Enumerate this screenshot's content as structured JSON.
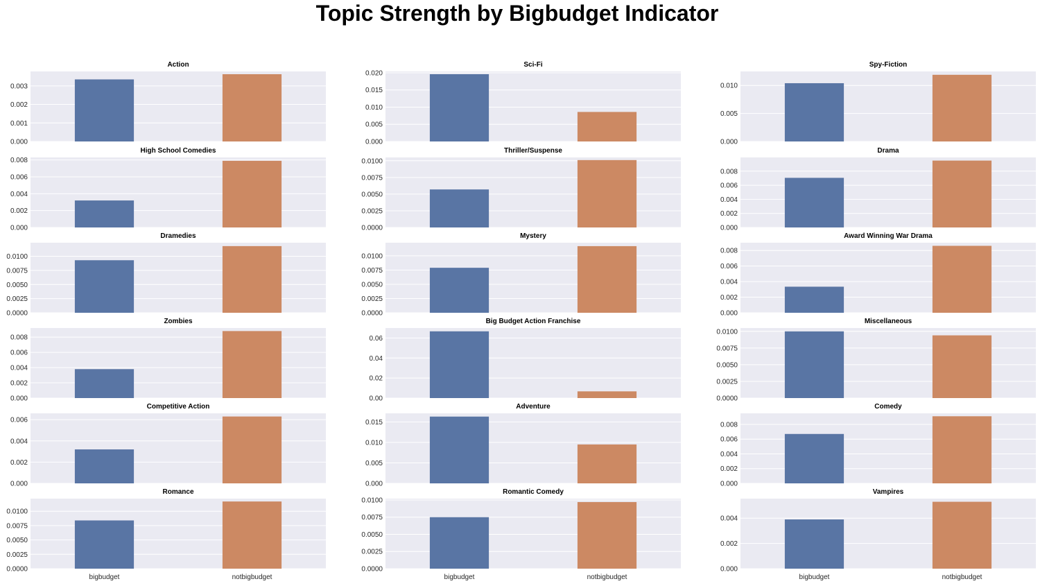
{
  "title": "Topic Strength by Bigbudget Indicator",
  "colors": {
    "bigbudget": "#5975a4",
    "notbigbudget": "#cc8963",
    "panel_bg": "#eaeaf2",
    "grid": "#ffffff"
  },
  "x_tick_labels": [
    "bigbudget",
    "notbigbudget"
  ],
  "chart_data": [
    {
      "type": "bar",
      "title": "Action",
      "categories": [
        "bigbudget",
        "notbigbudget"
      ],
      "values": [
        0.00335,
        0.00363
      ],
      "ylim": [
        0,
        0.00378
      ],
      "yticks": [
        "0.000",
        "0.001",
        "0.002",
        "0.003"
      ],
      "ytick_values": [
        0,
        0.001,
        0.002,
        0.003
      ]
    },
    {
      "type": "bar",
      "title": "Sci-Fi",
      "categories": [
        "bigbudget",
        "notbigbudget"
      ],
      "values": [
        0.0196,
        0.0086
      ],
      "ylim": [
        0,
        0.0204
      ],
      "yticks": [
        "0.000",
        "0.005",
        "0.010",
        "0.015",
        "0.020"
      ],
      "ytick_values": [
        0,
        0.005,
        0.01,
        0.015,
        0.02
      ]
    },
    {
      "type": "bar",
      "title": "Spy-Fiction",
      "categories": [
        "bigbudget",
        "notbigbudget"
      ],
      "values": [
        0.0104,
        0.0119
      ],
      "ylim": [
        0,
        0.0125
      ],
      "yticks": [
        "0.000",
        "0.005",
        "0.010"
      ],
      "ytick_values": [
        0,
        0.005,
        0.01
      ]
    },
    {
      "type": "bar",
      "title": "High School Comedies",
      "categories": [
        "bigbudget",
        "notbigbudget"
      ],
      "values": [
        0.0032,
        0.0079
      ],
      "ylim": [
        0,
        0.0083
      ],
      "yticks": [
        "0.000",
        "0.002",
        "0.004",
        "0.006",
        "0.008"
      ],
      "ytick_values": [
        0,
        0.002,
        0.004,
        0.006,
        0.008
      ]
    },
    {
      "type": "bar",
      "title": "Thriller/Suspense",
      "categories": [
        "bigbudget",
        "notbigbudget"
      ],
      "values": [
        0.0057,
        0.0101
      ],
      "ylim": [
        0,
        0.0105
      ],
      "yticks": [
        "0.0000",
        "0.0025",
        "0.0050",
        "0.0075",
        "0.0100"
      ],
      "ytick_values": [
        0,
        0.0025,
        0.005,
        0.0075,
        0.01
      ]
    },
    {
      "type": "bar",
      "title": "Drama",
      "categories": [
        "bigbudget",
        "notbigbudget"
      ],
      "values": [
        0.00705,
        0.0095
      ],
      "ylim": [
        0,
        0.00995
      ],
      "yticks": [
        "0.000",
        "0.002",
        "0.004",
        "0.006",
        "0.008"
      ],
      "ytick_values": [
        0,
        0.002,
        0.004,
        0.006,
        0.008
      ]
    },
    {
      "type": "bar",
      "title": "Dramedies",
      "categories": [
        "bigbudget",
        "notbigbudget"
      ],
      "values": [
        0.0093,
        0.0118
      ],
      "ylim": [
        0,
        0.0124
      ],
      "yticks": [
        "0.0000",
        "0.0025",
        "0.0050",
        "0.0075",
        "0.0100"
      ],
      "ytick_values": [
        0,
        0.0025,
        0.005,
        0.0075,
        0.01
      ]
    },
    {
      "type": "bar",
      "title": "Mystery",
      "categories": [
        "bigbudget",
        "notbigbudget"
      ],
      "values": [
        0.0079,
        0.0117
      ],
      "ylim": [
        0,
        0.0123
      ],
      "yticks": [
        "0.0000",
        "0.0025",
        "0.0050",
        "0.0075",
        "0.0100"
      ],
      "ytick_values": [
        0,
        0.0025,
        0.005,
        0.0075,
        0.01
      ]
    },
    {
      "type": "bar",
      "title": "Award Winning War Drama",
      "categories": [
        "bigbudget",
        "notbigbudget"
      ],
      "values": [
        0.00335,
        0.0086
      ],
      "ylim": [
        0,
        0.009
      ],
      "yticks": [
        "0.000",
        "0.002",
        "0.004",
        "0.006",
        "0.008"
      ],
      "ytick_values": [
        0,
        0.002,
        0.004,
        0.006,
        0.008
      ]
    },
    {
      "type": "bar",
      "title": "Zombies",
      "categories": [
        "bigbudget",
        "notbigbudget"
      ],
      "values": [
        0.0038,
        0.0088
      ],
      "ylim": [
        0,
        0.0092
      ],
      "yticks": [
        "0.000",
        "0.002",
        "0.004",
        "0.006",
        "0.008"
      ],
      "ytick_values": [
        0,
        0.002,
        0.004,
        0.006,
        0.008
      ]
    },
    {
      "type": "bar",
      "title": "Big Budget Action Franchise",
      "categories": [
        "bigbudget",
        "notbigbudget"
      ],
      "values": [
        0.0667,
        0.0067
      ],
      "ylim": [
        0,
        0.07
      ],
      "yticks": [
        "0.00",
        "0.02",
        "0.04",
        "0.06"
      ],
      "ytick_values": [
        0,
        0.02,
        0.04,
        0.06
      ]
    },
    {
      "type": "bar",
      "title": "Miscellaneous",
      "categories": [
        "bigbudget",
        "notbigbudget"
      ],
      "values": [
        0.01,
        0.0094
      ],
      "ylim": [
        0,
        0.0105
      ],
      "yticks": [
        "0.0000",
        "0.0025",
        "0.0050",
        "0.0075",
        "0.0100"
      ],
      "ytick_values": [
        0,
        0.0025,
        0.005,
        0.0075,
        0.01
      ]
    },
    {
      "type": "bar",
      "title": "Competitive Action",
      "categories": [
        "bigbudget",
        "notbigbudget"
      ],
      "values": [
        0.0032,
        0.0063
      ],
      "ylim": [
        0,
        0.0066
      ],
      "yticks": [
        "0.000",
        "0.002",
        "0.004",
        "0.006"
      ],
      "ytick_values": [
        0,
        0.002,
        0.004,
        0.006
      ]
    },
    {
      "type": "bar",
      "title": "Adventure",
      "categories": [
        "bigbudget",
        "notbigbudget"
      ],
      "values": [
        0.0163,
        0.0095
      ],
      "ylim": [
        0,
        0.0171
      ],
      "yticks": [
        "0.000",
        "0.005",
        "0.010",
        "0.015"
      ],
      "ytick_values": [
        0,
        0.005,
        0.01,
        0.015
      ]
    },
    {
      "type": "bar",
      "title": "Comedy",
      "categories": [
        "bigbudget",
        "notbigbudget"
      ],
      "values": [
        0.0067,
        0.0091
      ],
      "ylim": [
        0,
        0.0095
      ],
      "yticks": [
        "0.000",
        "0.002",
        "0.004",
        "0.006",
        "0.008"
      ],
      "ytick_values": [
        0,
        0.002,
        0.004,
        0.006,
        0.008
      ]
    },
    {
      "type": "bar",
      "title": "Romance",
      "categories": [
        "bigbudget",
        "notbigbudget"
      ],
      "values": [
        0.0084,
        0.0117
      ],
      "ylim": [
        0,
        0.0122
      ],
      "yticks": [
        "0.0000",
        "0.0025",
        "0.0050",
        "0.0075",
        "0.0100"
      ],
      "ytick_values": [
        0,
        0.0025,
        0.005,
        0.0075,
        0.01
      ]
    },
    {
      "type": "bar",
      "title": "Romantic Comedy",
      "categories": [
        "bigbudget",
        "notbigbudget"
      ],
      "values": [
        0.0075,
        0.0097
      ],
      "ylim": [
        0,
        0.0102
      ],
      "yticks": [
        "0.0000",
        "0.0025",
        "0.0050",
        "0.0075",
        "0.0100"
      ],
      "ytick_values": [
        0,
        0.0025,
        0.005,
        0.0075,
        0.01
      ]
    },
    {
      "type": "bar",
      "title": "Vampires",
      "categories": [
        "bigbudget",
        "notbigbudget"
      ],
      "values": [
        0.0039,
        0.0053
      ],
      "ylim": [
        0,
        0.00555
      ],
      "yticks": [
        "0.000",
        "0.002",
        "0.004"
      ],
      "ytick_values": [
        0,
        0.002,
        0.004
      ]
    }
  ]
}
